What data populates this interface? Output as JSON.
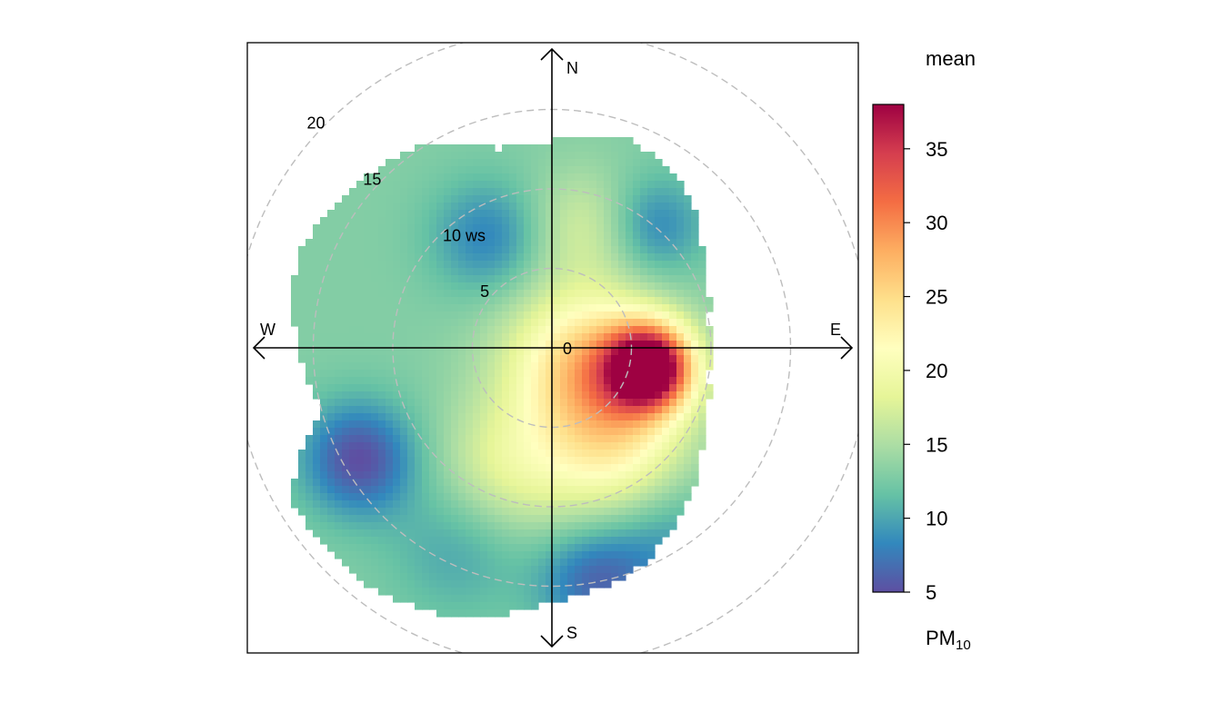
{
  "chart_data": {
    "type": "heatmap",
    "subtype": "polar-plot",
    "compass": {
      "north": "N",
      "south": "S",
      "east": "E",
      "west": "W"
    },
    "radial_axis": {
      "variable": "ws",
      "range": [
        0,
        20
      ],
      "ticks": [
        {
          "value": 0,
          "label": "0"
        },
        {
          "value": 5,
          "label": "5"
        },
        {
          "value": 10,
          "label": "10 ws"
        },
        {
          "value": 15,
          "label": "15"
        },
        {
          "value": 20,
          "label": "20"
        }
      ],
      "grid": true
    },
    "colorbar": {
      "title": "mean",
      "pollutant_main": "PM",
      "pollutant_sub": "10",
      "range": [
        5,
        38
      ],
      "ticks": [
        5,
        10,
        15,
        20,
        25,
        30,
        35
      ],
      "palette": [
        "#5E4FA2",
        "#3288BD",
        "#66C2A5",
        "#ABDDA4",
        "#E6F598",
        "#FFFFBF",
        "#FEE08B",
        "#FDAE61",
        "#F46D43",
        "#D53E4F",
        "#9E0142"
      ]
    },
    "field": {
      "background": 13,
      "extent_ws_by_bearing": [
        {
          "deg": 0,
          "ws": 13
        },
        {
          "deg": 20,
          "ws": 14
        },
        {
          "deg": 40,
          "ws": 13
        },
        {
          "deg": 60,
          "ws": 11
        },
        {
          "deg": 80,
          "ws": 10
        },
        {
          "deg": 100,
          "ws": 10
        },
        {
          "deg": 120,
          "ws": 11
        },
        {
          "deg": 140,
          "ws": 13
        },
        {
          "deg": 160,
          "ws": 15
        },
        {
          "deg": 180,
          "ws": 16
        },
        {
          "deg": 200,
          "ws": 18
        },
        {
          "deg": 220,
          "ws": 19
        },
        {
          "deg": 240,
          "ws": 19
        },
        {
          "deg": 255,
          "ws": 15
        },
        {
          "deg": 270,
          "ws": 16
        },
        {
          "deg": 290,
          "ws": 17
        },
        {
          "deg": 310,
          "ws": 16
        },
        {
          "deg": 330,
          "ws": 15
        },
        {
          "deg": 345,
          "ws": 13
        },
        {
          "deg": 360,
          "ws": 13
        }
      ],
      "features": [
        {
          "deg": 101,
          "ws": 6.3,
          "value": 38,
          "spread": 1.8
        },
        {
          "deg": 115,
          "ws": 4.5,
          "value": 20,
          "spread": 3.0
        },
        {
          "deg": 120,
          "ws": 2,
          "value": 22,
          "spread": 3.5
        },
        {
          "deg": 150,
          "ws": 8,
          "value": 20,
          "spread": 3.2
        },
        {
          "deg": 200,
          "ws": 8,
          "value": 18,
          "spread": 3.0
        },
        {
          "deg": 240,
          "ws": 14,
          "value": 5,
          "spread": 2.5
        },
        {
          "deg": 205,
          "ws": 14,
          "value": 10,
          "spread": 3.0
        },
        {
          "deg": 170,
          "ws": 15,
          "value": 7,
          "spread": 2.5
        },
        {
          "deg": 150,
          "ws": 14,
          "value": 9,
          "spread": 3.0
        },
        {
          "deg": 330,
          "ws": 8,
          "value": 8,
          "spread": 2.5
        },
        {
          "deg": 40,
          "ws": 10,
          "value": 8,
          "spread": 2.2
        },
        {
          "deg": 15,
          "ws": 8,
          "value": 17,
          "spread": 2.5
        },
        {
          "deg": 300,
          "ws": 13,
          "value": 13,
          "spread": 3.0
        }
      ]
    }
  }
}
